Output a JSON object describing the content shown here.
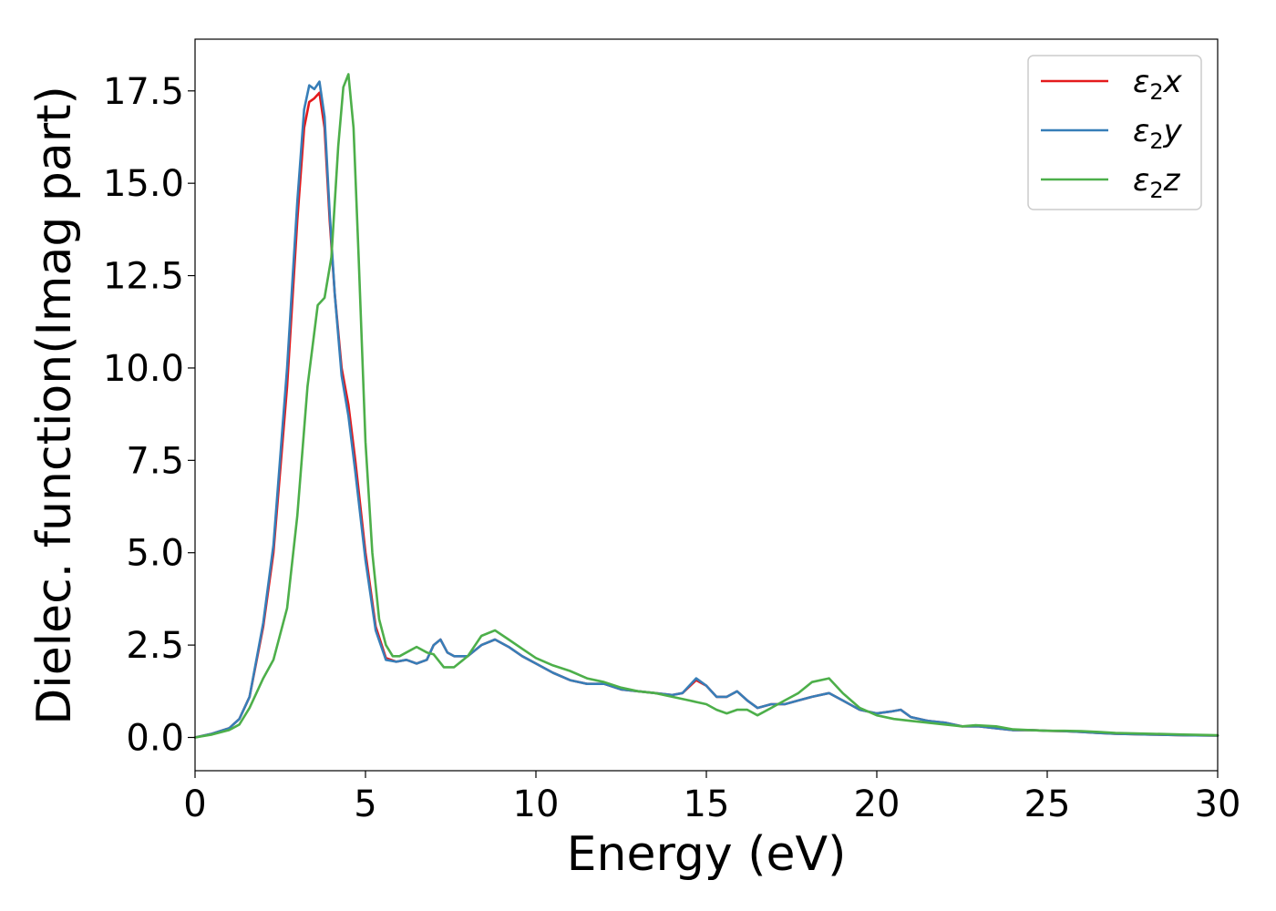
{
  "chart_data": {
    "type": "line",
    "xlabel": "Energy (eV)",
    "ylabel": "Dielec. function(Imag part)",
    "xlim": [
      0,
      30
    ],
    "ylim": [
      -0.9,
      18.9
    ],
    "xticks": [
      0,
      5,
      10,
      15,
      20,
      25,
      30
    ],
    "xtick_labels": [
      "0",
      "5",
      "10",
      "15",
      "20",
      "25",
      "30"
    ],
    "yticks": [
      0.0,
      2.5,
      5.0,
      7.5,
      10.0,
      12.5,
      15.0,
      17.5
    ],
    "ytick_labels": [
      "0.0",
      "2.5",
      "5.0",
      "7.5",
      "10.0",
      "12.5",
      "15.0",
      "17.5"
    ],
    "grid": false,
    "legend_position": "top-right",
    "series": [
      {
        "name": "ε₂x",
        "legend_base": "ε",
        "legend_sub": "2",
        "legend_suffix": "x",
        "color": "#e41a1c",
        "x": [
          0,
          0.5,
          1.0,
          1.3,
          1.6,
          2.0,
          2.3,
          2.7,
          3.0,
          3.2,
          3.35,
          3.5,
          3.65,
          3.8,
          3.95,
          4.1,
          4.3,
          4.5,
          4.7,
          5.0,
          5.3,
          5.6,
          5.9,
          6.2,
          6.5,
          6.8,
          7.0,
          7.2,
          7.4,
          7.6,
          8.0,
          8.4,
          8.8,
          9.2,
          9.6,
          10.0,
          10.5,
          11.0,
          11.5,
          12.0,
          12.5,
          13.0,
          13.5,
          14.0,
          14.3,
          14.7,
          15.0,
          15.3,
          15.6,
          15.9,
          16.2,
          16.5,
          16.9,
          17.3,
          17.7,
          18.1,
          18.6,
          19.0,
          19.5,
          20.0,
          20.4,
          20.7,
          21.0,
          21.5,
          22.0,
          22.5,
          23.0,
          23.5,
          24.0,
          24.5,
          25.0,
          25.5,
          26.0,
          26.5,
          27.0,
          28.0,
          29.0,
          30.0
        ],
        "y": [
          0.0,
          0.1,
          0.25,
          0.5,
          1.1,
          3.0,
          5.0,
          9.5,
          14.0,
          16.5,
          17.2,
          17.3,
          17.45,
          16.5,
          14.0,
          12.0,
          10.0,
          9.0,
          7.5,
          5.0,
          3.0,
          2.15,
          2.05,
          2.1,
          2.0,
          2.1,
          2.5,
          2.65,
          2.3,
          2.2,
          2.2,
          2.5,
          2.65,
          2.45,
          2.2,
          2.0,
          1.75,
          1.55,
          1.45,
          1.45,
          1.3,
          1.25,
          1.2,
          1.15,
          1.2,
          1.55,
          1.4,
          1.1,
          1.1,
          1.25,
          1.0,
          0.8,
          0.9,
          0.9,
          1.0,
          1.1,
          1.2,
          1.0,
          0.75,
          0.65,
          0.7,
          0.75,
          0.55,
          0.45,
          0.4,
          0.3,
          0.3,
          0.25,
          0.2,
          0.2,
          0.18,
          0.17,
          0.15,
          0.12,
          0.1,
          0.08,
          0.06,
          0.05
        ]
      },
      {
        "name": "ε₂y",
        "legend_base": "ε",
        "legend_sub": "2",
        "legend_suffix": "y",
        "color": "#377eb8",
        "x": [
          0,
          0.5,
          1.0,
          1.3,
          1.6,
          2.0,
          2.3,
          2.7,
          3.0,
          3.2,
          3.35,
          3.5,
          3.65,
          3.8,
          3.95,
          4.1,
          4.3,
          4.5,
          4.7,
          5.0,
          5.3,
          5.6,
          5.9,
          6.2,
          6.5,
          6.8,
          7.0,
          7.2,
          7.4,
          7.6,
          8.0,
          8.4,
          8.8,
          9.2,
          9.6,
          10.0,
          10.5,
          11.0,
          11.5,
          12.0,
          12.5,
          13.0,
          13.5,
          14.0,
          14.3,
          14.7,
          15.0,
          15.3,
          15.6,
          15.9,
          16.2,
          16.5,
          16.9,
          17.3,
          17.7,
          18.1,
          18.6,
          19.0,
          19.5,
          20.0,
          20.4,
          20.7,
          21.0,
          21.5,
          22.0,
          22.5,
          23.0,
          23.5,
          24.0,
          24.5,
          25.0,
          25.5,
          26.0,
          26.5,
          27.0,
          28.0,
          29.0,
          30.0
        ],
        "y": [
          0.0,
          0.1,
          0.25,
          0.5,
          1.1,
          3.1,
          5.2,
          10.0,
          14.5,
          17.0,
          17.65,
          17.55,
          17.75,
          16.8,
          14.2,
          12.0,
          9.8,
          8.7,
          7.2,
          4.8,
          2.9,
          2.1,
          2.05,
          2.1,
          2.0,
          2.1,
          2.5,
          2.65,
          2.3,
          2.2,
          2.2,
          2.5,
          2.65,
          2.45,
          2.2,
          2.0,
          1.75,
          1.55,
          1.45,
          1.45,
          1.3,
          1.25,
          1.2,
          1.15,
          1.2,
          1.6,
          1.4,
          1.1,
          1.1,
          1.25,
          1.0,
          0.8,
          0.9,
          0.9,
          1.0,
          1.1,
          1.2,
          1.0,
          0.75,
          0.65,
          0.7,
          0.75,
          0.55,
          0.45,
          0.4,
          0.3,
          0.3,
          0.25,
          0.2,
          0.2,
          0.18,
          0.17,
          0.15,
          0.12,
          0.1,
          0.08,
          0.06,
          0.05
        ]
      },
      {
        "name": "ε₂z",
        "legend_base": "ε",
        "legend_sub": "2",
        "legend_suffix": "z",
        "color": "#4daf4a",
        "x": [
          0,
          0.5,
          1.0,
          1.3,
          1.6,
          2.0,
          2.3,
          2.7,
          3.0,
          3.3,
          3.6,
          3.8,
          4.0,
          4.2,
          4.35,
          4.5,
          4.65,
          4.8,
          5.0,
          5.2,
          5.4,
          5.6,
          5.8,
          6.0,
          6.2,
          6.5,
          6.8,
          7.0,
          7.3,
          7.6,
          8.0,
          8.4,
          8.8,
          9.2,
          9.6,
          10.0,
          10.5,
          11.0,
          11.5,
          12.0,
          12.5,
          13.0,
          13.5,
          14.0,
          14.5,
          15.0,
          15.3,
          15.6,
          15.9,
          16.2,
          16.5,
          16.9,
          17.3,
          17.7,
          18.1,
          18.6,
          19.0,
          19.5,
          20.0,
          20.5,
          21.0,
          21.5,
          22.0,
          22.5,
          22.9,
          23.5,
          24.0,
          24.5,
          25.0,
          25.5,
          26.0,
          26.5,
          27.0,
          28.0,
          29.0,
          30.0
        ],
        "y": [
          0.0,
          0.08,
          0.2,
          0.35,
          0.8,
          1.6,
          2.1,
          3.5,
          6.0,
          9.5,
          11.7,
          11.9,
          13.0,
          16.0,
          17.6,
          17.95,
          16.5,
          13.0,
          8.0,
          5.0,
          3.2,
          2.5,
          2.2,
          2.2,
          2.3,
          2.45,
          2.3,
          2.25,
          1.9,
          1.9,
          2.2,
          2.75,
          2.9,
          2.65,
          2.4,
          2.15,
          1.95,
          1.8,
          1.6,
          1.5,
          1.35,
          1.25,
          1.2,
          1.1,
          1.0,
          0.9,
          0.75,
          0.65,
          0.75,
          0.75,
          0.6,
          0.8,
          1.0,
          1.2,
          1.5,
          1.6,
          1.2,
          0.8,
          0.6,
          0.5,
          0.45,
          0.4,
          0.35,
          0.3,
          0.33,
          0.3,
          0.22,
          0.2,
          0.18,
          0.18,
          0.17,
          0.15,
          0.12,
          0.1,
          0.08,
          0.06
        ]
      }
    ]
  }
}
